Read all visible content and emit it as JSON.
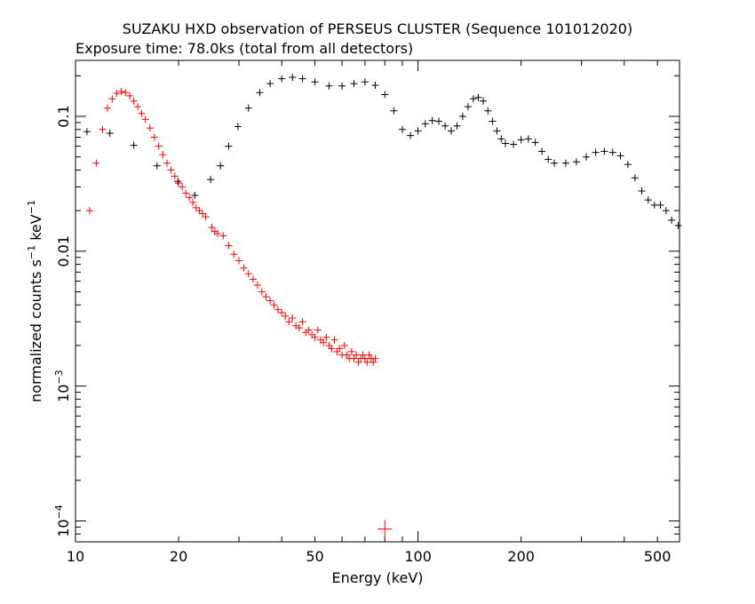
{
  "chart_data": {
    "type": "scatter",
    "title": "SUZAKU HXD observation of PERSEUS CLUSTER (Sequence 101012020)",
    "subtitle": "Exposure time: 78.0ks (total from all detectors)",
    "xlabel": "Energy (keV)",
    "ylabel_main": "normalized counts s",
    "ylabel_sup1": "−1",
    "ylabel_mid": " keV",
    "ylabel_sup2": "−1",
    "x_scale": "log",
    "y_scale": "log",
    "xlim": [
      10,
      580
    ],
    "ylim": [
      7e-05,
      0.26
    ],
    "x_ticks": [
      {
        "value": 10,
        "label": "10"
      },
      {
        "value": 20,
        "label": "20"
      },
      {
        "value": 50,
        "label": "50"
      },
      {
        "value": 100,
        "label": "100"
      },
      {
        "value": 200,
        "label": "200"
      },
      {
        "value": 500,
        "label": "500"
      }
    ],
    "y_ticks": [
      {
        "value": 0.1,
        "base": "0.1",
        "sup": ""
      },
      {
        "value": 0.01,
        "base": "0.01",
        "sup": ""
      },
      {
        "value": 0.001,
        "base": "10",
        "sup": "−3"
      },
      {
        "value": 0.0001,
        "base": "10",
        "sup": "−4"
      }
    ],
    "series": [
      {
        "color": "#ff0000",
        "points": [
          [
            11.0,
            0.02
          ],
          [
            11.5,
            0.045
          ],
          [
            12.0,
            0.08
          ],
          [
            12.4,
            0.115
          ],
          [
            12.8,
            0.135
          ],
          [
            13.2,
            0.148
          ],
          [
            13.6,
            0.153
          ],
          [
            14.0,
            0.15
          ],
          [
            14.4,
            0.142
          ],
          [
            14.8,
            0.13
          ],
          [
            15.2,
            0.118
          ],
          [
            15.6,
            0.105
          ],
          [
            16.0,
            0.095
          ],
          [
            16.5,
            0.082
          ],
          [
            17.0,
            0.07
          ],
          [
            17.5,
            0.06
          ],
          [
            18.0,
            0.052
          ],
          [
            18.5,
            0.045
          ],
          [
            19.0,
            0.04
          ],
          [
            19.5,
            0.036
          ],
          [
            20.0,
            0.032
          ],
          [
            20.5,
            0.03
          ],
          [
            21.0,
            0.027
          ],
          [
            21.5,
            0.025
          ],
          [
            22.0,
            0.023
          ],
          [
            22.5,
            0.021
          ],
          [
            23.0,
            0.02
          ],
          [
            23.5,
            0.019
          ],
          [
            24.0,
            0.018
          ],
          [
            25.0,
            0.015
          ],
          [
            25.5,
            0.014
          ],
          [
            26.0,
            0.0135
          ],
          [
            27.0,
            0.013
          ],
          [
            28.0,
            0.011
          ],
          [
            29.0,
            0.0095
          ],
          [
            30.0,
            0.0085
          ],
          [
            31.0,
            0.0075
          ],
          [
            32.0,
            0.0068
          ],
          [
            33.0,
            0.0062
          ],
          [
            34.0,
            0.0056
          ],
          [
            35.0,
            0.005
          ],
          [
            36.0,
            0.0046
          ],
          [
            37.0,
            0.0043
          ],
          [
            38.0,
            0.004
          ],
          [
            39.0,
            0.0037
          ],
          [
            40.0,
            0.0035
          ],
          [
            41.0,
            0.0033
          ],
          [
            42.0,
            0.003
          ],
          [
            43.0,
            0.0032
          ],
          [
            44.0,
            0.0028
          ],
          [
            45.0,
            0.0027
          ],
          [
            46.0,
            0.003
          ],
          [
            47.0,
            0.0025
          ],
          [
            48.0,
            0.0026
          ],
          [
            49.0,
            0.0024
          ],
          [
            50.0,
            0.0023
          ],
          [
            51.0,
            0.0026
          ],
          [
            52.0,
            0.0022
          ],
          [
            53.0,
            0.0021
          ],
          [
            54.0,
            0.0023
          ],
          [
            55.0,
            0.002
          ],
          [
            56.0,
            0.0019
          ],
          [
            57.0,
            0.0022
          ],
          [
            58.0,
            0.0018
          ],
          [
            59.0,
            0.0019
          ],
          [
            60.0,
            0.0017
          ],
          [
            61.0,
            0.002
          ],
          [
            62.0,
            0.0017
          ],
          [
            63.0,
            0.0016
          ],
          [
            64.0,
            0.0018
          ],
          [
            65.0,
            0.0016
          ],
          [
            66.0,
            0.0017
          ],
          [
            67.0,
            0.0015
          ],
          [
            68.0,
            0.0016
          ],
          [
            69.0,
            0.0017
          ],
          [
            70.0,
            0.0016
          ],
          [
            71.0,
            0.0015
          ],
          [
            72.0,
            0.0017
          ],
          [
            73.0,
            0.0016
          ],
          [
            74.0,
            0.0015
          ],
          [
            75.0,
            0.0016
          ],
          [
            80.0,
            8.7e-05
          ]
        ]
      },
      {
        "color": "#000000",
        "points": [
          [
            10.8,
            0.077
          ],
          [
            12.6,
            0.075
          ],
          [
            14.8,
            0.061
          ],
          [
            17.3,
            0.043
          ],
          [
            19.9,
            0.033
          ],
          [
            22.3,
            0.026
          ],
          [
            24.8,
            0.034
          ],
          [
            26.5,
            0.043
          ],
          [
            28.0,
            0.06
          ],
          [
            29.8,
            0.084
          ],
          [
            32.0,
            0.115
          ],
          [
            34.5,
            0.15
          ],
          [
            37.0,
            0.175
          ],
          [
            40.0,
            0.19
          ],
          [
            43.0,
            0.195
          ],
          [
            46.0,
            0.19
          ],
          [
            50.0,
            0.18
          ],
          [
            55.0,
            0.168
          ],
          [
            60.0,
            0.168
          ],
          [
            65.0,
            0.175
          ],
          [
            70.0,
            0.18
          ],
          [
            75.0,
            0.17
          ],
          [
            80.0,
            0.145
          ],
          [
            85.0,
            0.11
          ],
          [
            90.0,
            0.08
          ],
          [
            95.0,
            0.072
          ],
          [
            100.0,
            0.078
          ],
          [
            105.0,
            0.088
          ],
          [
            110.0,
            0.093
          ],
          [
            115.0,
            0.092
          ],
          [
            120.0,
            0.085
          ],
          [
            125.0,
            0.078
          ],
          [
            130.0,
            0.085
          ],
          [
            135.0,
            0.1
          ],
          [
            140.0,
            0.118
          ],
          [
            145.0,
            0.135
          ],
          [
            150.0,
            0.138
          ],
          [
            155.0,
            0.13
          ],
          [
            160.0,
            0.11
          ],
          [
            165.0,
            0.092
          ],
          [
            170.0,
            0.078
          ],
          [
            175.0,
            0.068
          ],
          [
            180.0,
            0.063
          ],
          [
            190.0,
            0.062
          ],
          [
            200.0,
            0.067
          ],
          [
            210.0,
            0.068
          ],
          [
            220.0,
            0.064
          ],
          [
            230.0,
            0.055
          ],
          [
            240.0,
            0.048
          ],
          [
            250.0,
            0.045
          ],
          [
            270.0,
            0.045
          ],
          [
            290.0,
            0.046
          ],
          [
            310.0,
            0.05
          ],
          [
            330.0,
            0.054
          ],
          [
            350.0,
            0.055
          ],
          [
            370.0,
            0.054
          ],
          [
            390.0,
            0.051
          ],
          [
            410.0,
            0.044
          ],
          [
            430.0,
            0.035
          ],
          [
            450.0,
            0.028
          ],
          [
            470.0,
            0.024
          ],
          [
            490.0,
            0.022
          ],
          [
            510.0,
            0.022
          ],
          [
            530.0,
            0.02
          ],
          [
            550.0,
            0.017
          ],
          [
            575.0,
            0.0155
          ]
        ]
      }
    ]
  }
}
